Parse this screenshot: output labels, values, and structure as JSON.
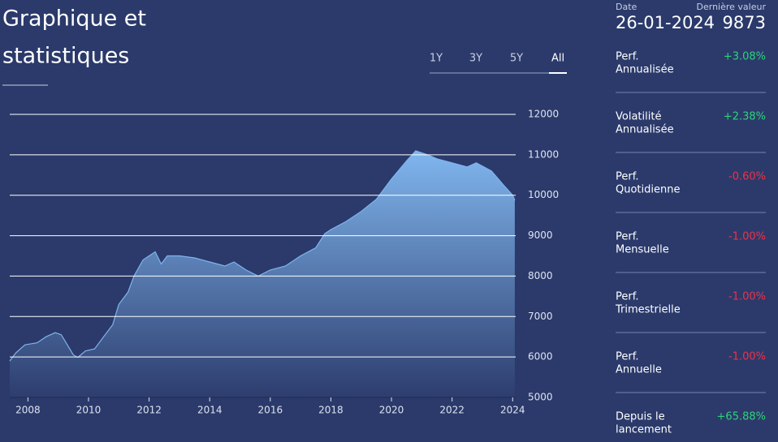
{
  "title": [
    "Graphique et",
    "statistiques"
  ],
  "tabs": [
    "1Y",
    "3Y",
    "5Y",
    "All"
  ],
  "active_tab": 3,
  "header": {
    "date_label": "Date",
    "last_label": "Dernière valeur",
    "date": "26-01-2024",
    "last_value": 9873
  },
  "stats": [
    {
      "label": [
        "Perf.",
        "Annualisée"
      ],
      "value": "+3.08%"
    },
    {
      "label": [
        "Volatilité",
        "Annualisée"
      ],
      "value": "+2.38%"
    },
    {
      "label": [
        "Perf.",
        "Quotidienne"
      ],
      "value": "-0.60%"
    },
    {
      "label": [
        "Perf.",
        "Mensuelle"
      ],
      "value": "-1.00%"
    },
    {
      "label": [
        "Perf.",
        "Trimestrielle"
      ],
      "value": "-1.00%"
    },
    {
      "label": [
        "Perf.",
        "Annuelle"
      ],
      "value": "-1.00%"
    },
    {
      "label": [
        "Depuis le",
        "lancement"
      ],
      "value": "+65.88%"
    }
  ],
  "positive_color": "#2fd27a",
  "negative_color": "#f0304a",
  "chart_data": {
    "type": "area",
    "x": [
      2007.4,
      2007.6,
      2007.9,
      2008.3,
      2008.6,
      2008.9,
      2009.1,
      2009.3,
      2009.5,
      2009.65,
      2009.9,
      2010.2,
      2010.5,
      2010.8,
      2011.0,
      2011.3,
      2011.5,
      2011.8,
      2012.0,
      2012.2,
      2012.4,
      2012.6,
      2013.0,
      2013.5,
      2014.0,
      2014.5,
      2014.8,
      2015.2,
      2015.6,
      2016.0,
      2016.5,
      2017.0,
      2017.5,
      2017.8,
      2018.0,
      2018.5,
      2019.0,
      2019.5,
      2020.0,
      2020.5,
      2020.8,
      2021.2,
      2021.5,
      2022.0,
      2022.5,
      2022.8,
      2023.3,
      2023.7,
      2024.0,
      2024.07
    ],
    "series": [
      {
        "color": "#7fb4ec",
        "values": [
          5900,
          6100,
          6300,
          6350,
          6500,
          6600,
          6550,
          6300,
          6050,
          5990,
          6150,
          6200,
          6500,
          6800,
          7300,
          7600,
          8000,
          8400,
          8500,
          8600,
          8300,
          8500,
          8500,
          8450,
          8350,
          8250,
          8350,
          8150,
          8000,
          8150,
          8250,
          8500,
          8700,
          9050,
          9150,
          9350,
          9600,
          9900,
          10400,
          10850,
          11100,
          11000,
          10900,
          10800,
          10700,
          10800,
          10600,
          10250,
          10000,
          9873
        ]
      }
    ],
    "xlim": [
      2007.4,
      2024.1
    ],
    "ylim": [
      5000,
      12000
    ],
    "xticks": [
      2008,
      2010,
      2012,
      2014,
      2016,
      2018,
      2020,
      2022,
      2024
    ],
    "yticks": [
      5000,
      6000,
      7000,
      8000,
      9000,
      10000,
      11000,
      12000
    ],
    "grid": true
  }
}
